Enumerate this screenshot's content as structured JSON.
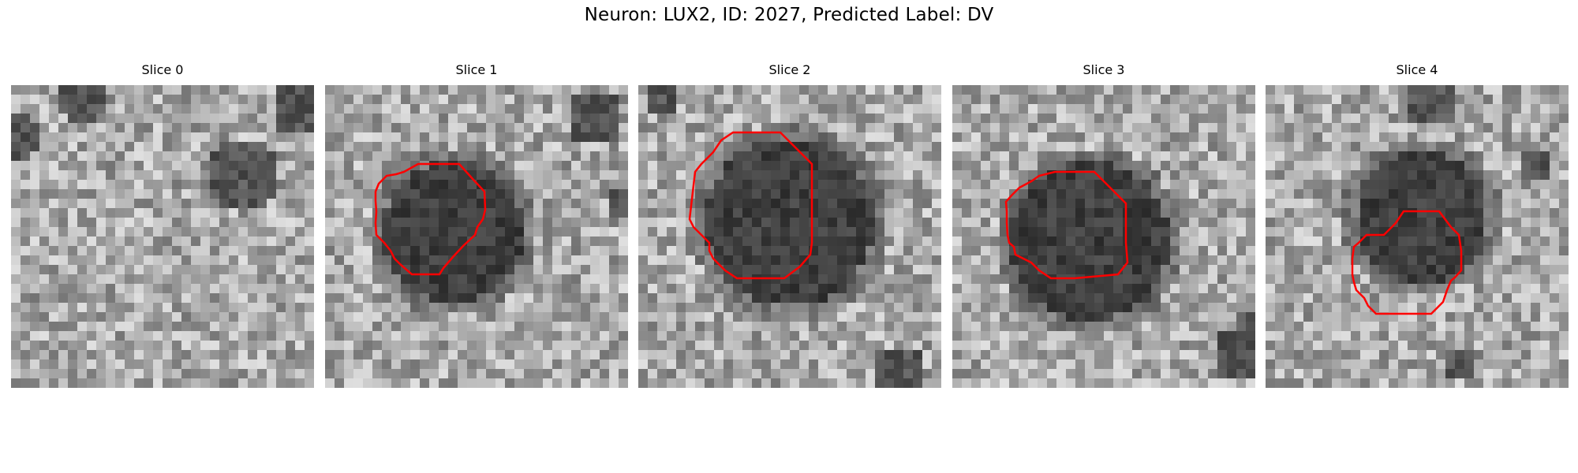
{
  "figure": {
    "title": "Neuron: LUX2, ID: 2027, Predicted Label: DV"
  },
  "panels": [
    {
      "title": "Slice 0",
      "has_outline": false
    },
    {
      "title": "Slice 1",
      "has_outline": true
    },
    {
      "title": "Slice 2",
      "has_outline": true
    },
    {
      "title": "Slice 3",
      "has_outline": true
    },
    {
      "title": "Slice 4",
      "has_outline": true
    }
  ],
  "style": {
    "outline_color": "#ff0000",
    "colormap": "grayscale"
  }
}
